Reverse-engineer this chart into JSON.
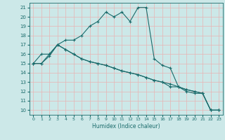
{
  "xlabel": "Humidex (Indice chaleur)",
  "xlim": [
    -0.5,
    23.5
  ],
  "ylim": [
    9.5,
    21.5
  ],
  "xticks": [
    0,
    1,
    2,
    3,
    4,
    5,
    6,
    7,
    8,
    9,
    10,
    11,
    12,
    13,
    14,
    15,
    16,
    17,
    18,
    19,
    20,
    21,
    22,
    23
  ],
  "yticks": [
    10,
    11,
    12,
    13,
    14,
    15,
    16,
    17,
    18,
    19,
    20,
    21
  ],
  "background_color": "#cce8e8",
  "grid_color": "#e8b4b4",
  "line_color": "#1a6b6b",
  "line1_x": [
    0,
    1,
    2,
    3,
    4,
    5,
    6,
    7,
    8,
    9,
    10,
    11,
    12,
    13,
    14,
    15,
    16,
    17,
    18,
    19,
    20,
    21,
    22,
    23
  ],
  "line1_y": [
    15,
    16,
    16,
    17,
    17.5,
    17.5,
    18,
    19,
    19.5,
    20.5,
    20,
    20.5,
    19.5,
    21,
    21,
    15.5,
    14.8,
    14.5,
    12.5,
    12,
    11.8,
    11.8,
    10,
    10
  ],
  "line2_x": [
    0,
    1,
    2,
    3,
    4,
    5,
    6,
    7,
    8,
    9,
    10,
    11,
    12,
    13,
    14,
    15,
    16,
    17,
    18,
    19,
    20,
    21,
    22,
    23
  ],
  "line2_y": [
    15,
    15,
    15.8,
    17,
    16.5,
    16,
    15.5,
    15.2,
    15.0,
    14.8,
    14.5,
    14.2,
    14.0,
    13.8,
    13.5,
    13.2,
    13.0,
    12.8,
    12.5,
    12.2,
    12.0,
    11.8,
    10,
    10
  ],
  "line3_x": [
    0,
    1,
    2,
    3,
    4,
    5,
    6,
    7,
    8,
    9,
    10,
    11,
    12,
    13,
    14,
    15,
    16,
    17,
    18,
    19,
    20,
    21,
    22,
    23
  ],
  "line3_y": [
    15,
    15,
    16,
    17,
    16.5,
    16,
    15.5,
    15.2,
    15.0,
    14.8,
    14.5,
    14.2,
    14.0,
    13.8,
    13.5,
    13.2,
    13.0,
    12.5,
    12.5,
    12.2,
    12.0,
    11.8,
    10,
    10
  ]
}
